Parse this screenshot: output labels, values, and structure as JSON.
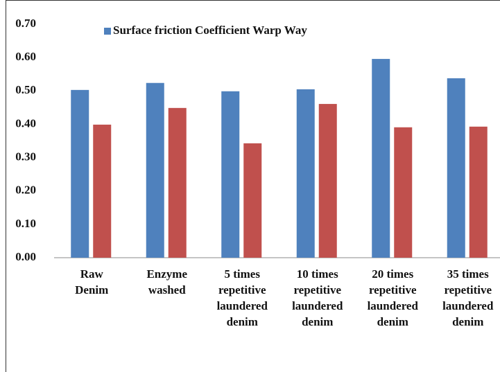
{
  "chart_data": {
    "type": "bar",
    "categories": [
      [
        "Raw",
        "Denim"
      ],
      [
        "Enzyme",
        "washed"
      ],
      [
        "5 times",
        "repetitive",
        "laundered",
        "denim"
      ],
      [
        "10 times",
        "repetitive",
        "laundered",
        "denim"
      ],
      [
        "20 times",
        "repetitive",
        "laundered",
        "denim"
      ],
      [
        "35 times",
        "repetitive",
        "laundered",
        "denim"
      ]
    ],
    "series": [
      {
        "name": "Surface friction Coefficient Warp Way",
        "color": "#4f81bd",
        "values": [
          0.503,
          0.524,
          0.499,
          0.505,
          0.596,
          0.538
        ]
      },
      {
        "color": "#c0504d",
        "values": [
          0.399,
          0.449,
          0.343,
          0.461,
          0.391,
          0.393
        ]
      }
    ],
    "ylim": [
      0,
      0.7
    ],
    "yticks": [
      {
        "value": 0,
        "label": "0.00"
      },
      {
        "value": 0.1,
        "label": "0.10"
      },
      {
        "value": 0.2,
        "label": "0.20"
      },
      {
        "value": 0.3,
        "label": "0.30"
      },
      {
        "value": 0.4,
        "label": "0.40"
      },
      {
        "value": 0.5,
        "label": "0.50"
      },
      {
        "value": 0.6,
        "label": "0.60"
      },
      {
        "value": 0.7,
        "label": "0.70"
      }
    ],
    "grid": false,
    "legend": "top"
  }
}
